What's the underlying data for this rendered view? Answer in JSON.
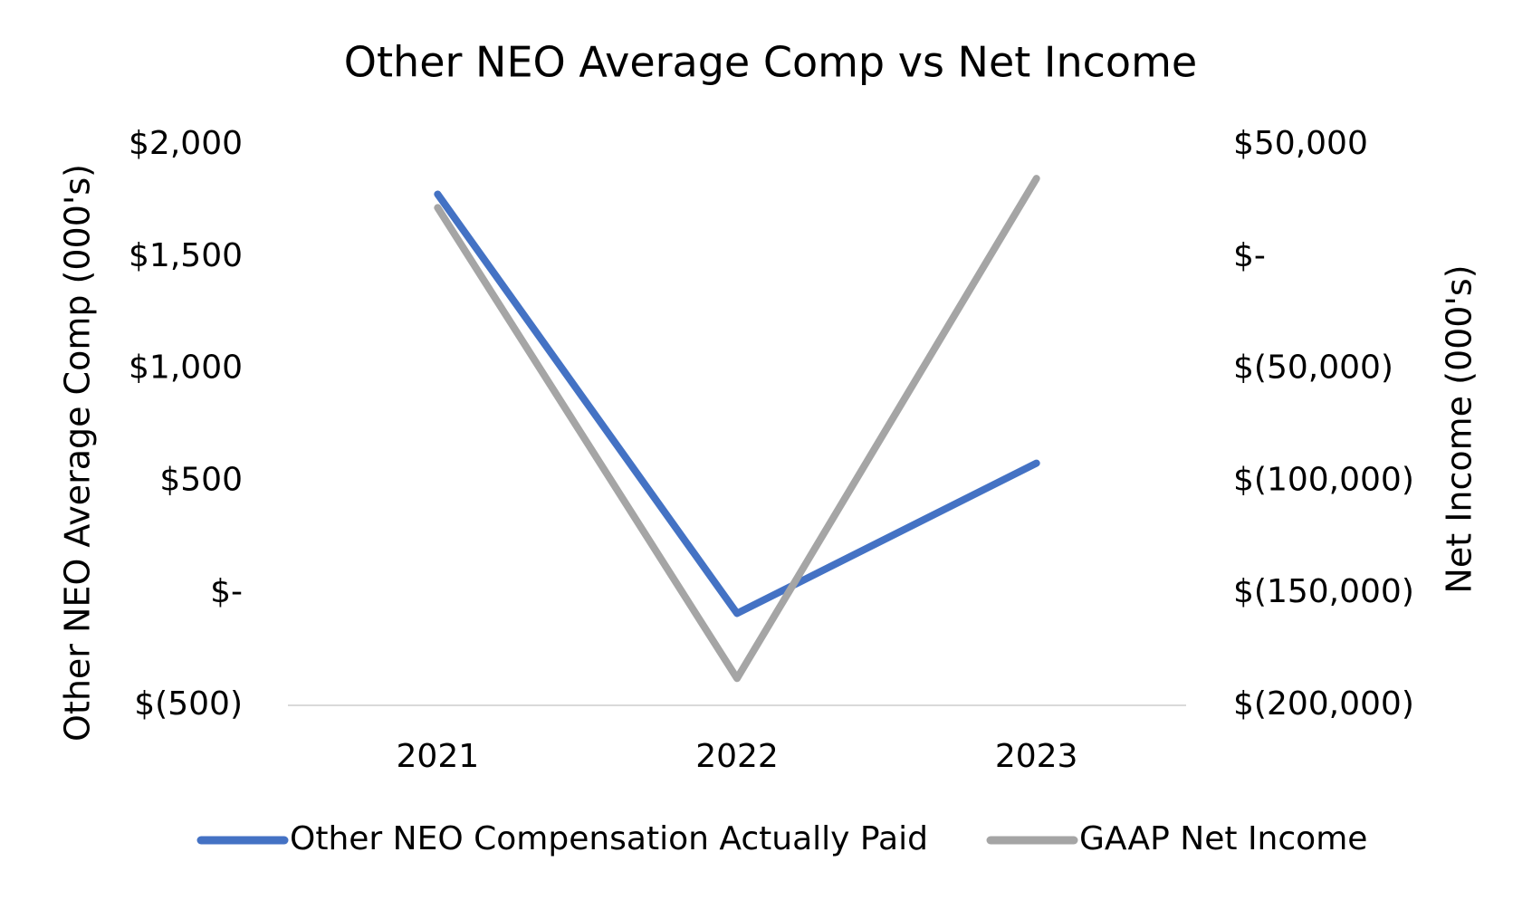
{
  "chart_data": {
    "type": "line",
    "title": "Other NEO Average Comp vs Net Income",
    "y_label": "Other NEO Average Comp (000's)",
    "y2_label": "Net Income (000's)",
    "categories": [
      "2021",
      "2022",
      "2023"
    ],
    "series": [
      {
        "name": "Other NEO Compensation Actually Paid",
        "color": "#4472c4",
        "values": [
          1780,
          -90,
          580
        ]
      },
      {
        "name": "GAAP Net Income",
        "color": "#a5a5a5",
        "axis": "y2",
        "values": [
          22000,
          -188000,
          35000
        ]
      }
    ],
    "ylim": [
      -500,
      2000
    ],
    "yticks": [
      {
        "value": 2000,
        "label": "$2,000"
      },
      {
        "value": 1500,
        "label": "$1,500"
      },
      {
        "value": 1000,
        "label": "$1,000"
      },
      {
        "value": 500,
        "label": "$500"
      },
      {
        "value": 0,
        "label": "$-"
      },
      {
        "value": -500,
        "label": "$(500)"
      }
    ],
    "y2lim": [
      -200000,
      50000
    ],
    "y2ticks": [
      {
        "value": 50000,
        "label": "$50,000"
      },
      {
        "value": 0,
        "label": "$-"
      },
      {
        "value": -50000,
        "label": "$(50,000)"
      },
      {
        "value": -100000,
        "label": "$(100,000)"
      },
      {
        "value": -150000,
        "label": "$(150,000)"
      },
      {
        "value": -200000,
        "label": "$(200,000)"
      }
    ],
    "grid": false,
    "legend": "bottom"
  }
}
